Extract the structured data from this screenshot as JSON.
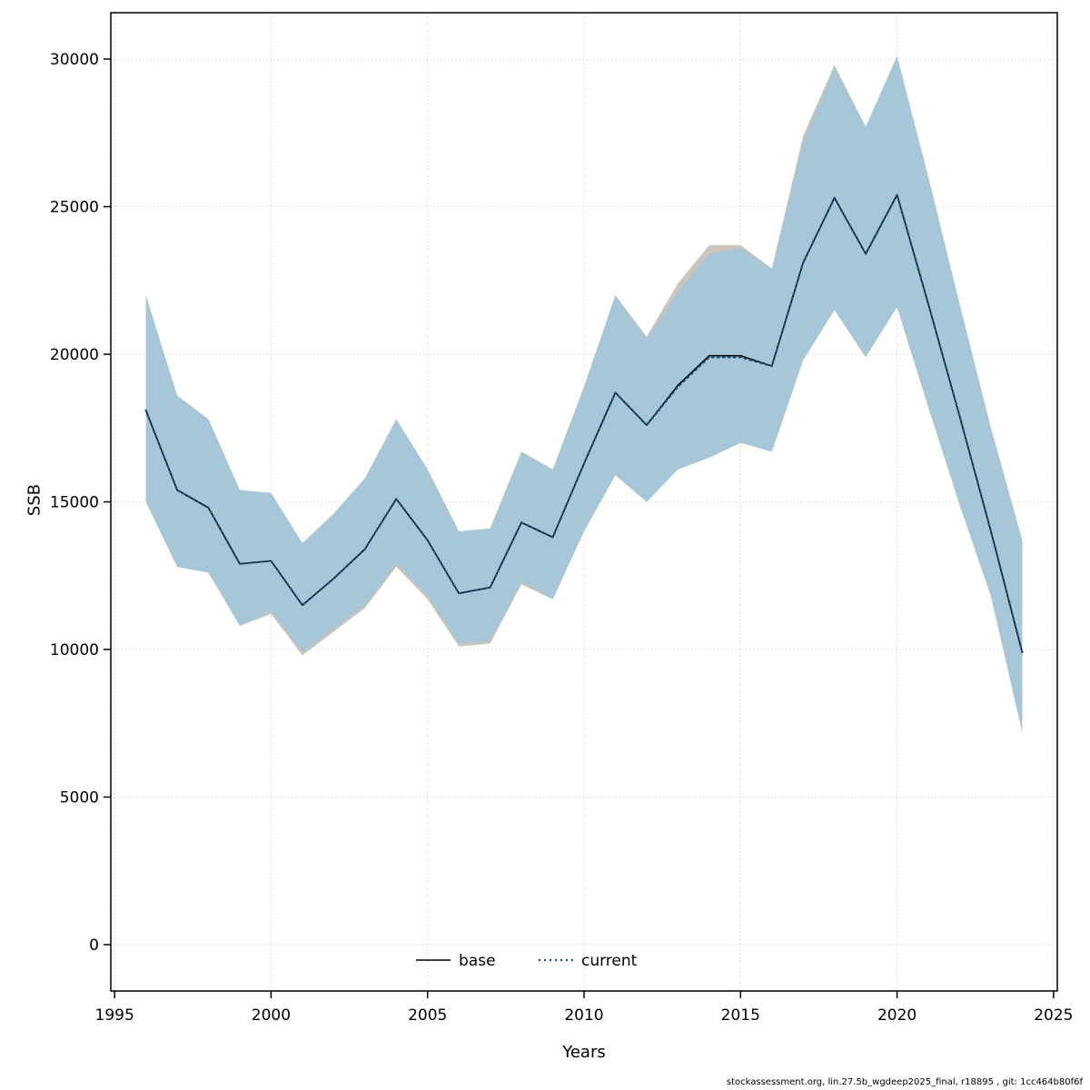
{
  "footer": {
    "text": "stockassessment.org, lin.27.5b_wgdeep2025_final, r18895 , git: 1cc464b80f6f"
  },
  "chart_data": {
    "type": "area",
    "title": "",
    "xlabel": "Years",
    "ylabel": "SSB",
    "xlim": [
      1995,
      2025
    ],
    "ylim": [
      0,
      30000
    ],
    "x_ticks": [
      1995,
      2000,
      2005,
      2010,
      2015,
      2020,
      2025
    ],
    "y_ticks": [
      0,
      5000,
      10000,
      15000,
      20000,
      25000,
      30000
    ],
    "grid": true,
    "legend_position": "bottom-center",
    "x": [
      1996,
      1997,
      1998,
      1999,
      2000,
      2001,
      2002,
      2003,
      2004,
      2005,
      2006,
      2007,
      2008,
      2009,
      2010,
      2011,
      2012,
      2013,
      2014,
      2015,
      2016,
      2017,
      2018,
      2019,
      2020,
      2021,
      2022,
      2023,
      2024
    ],
    "series": [
      {
        "name": "base",
        "line_style": "solid",
        "color": "#000000",
        "band_color": "#c9c4be",
        "band_opacity": 1,
        "median": [
          18100,
          15400,
          14800,
          12900,
          13000,
          11500,
          12400,
          13400,
          15100,
          13700,
          11900,
          12100,
          14300,
          13800,
          16300,
          18700,
          17600,
          18950,
          19950,
          19950,
          19600,
          23100,
          25300,
          23400,
          25400,
          21700,
          17900,
          14000,
          9900
        ],
        "low": [
          15000,
          12800,
          12600,
          10800,
          11200,
          9800,
          10600,
          11400,
          12800,
          11700,
          10100,
          10200,
          12200,
          11700,
          14000,
          15900,
          15000,
          16100,
          16500,
          17000,
          16700,
          19800,
          21500,
          19900,
          21600,
          18200,
          14900,
          11800,
          7200
        ],
        "high": [
          22000,
          18600,
          17800,
          15400,
          15300,
          13600,
          14600,
          15800,
          17800,
          16100,
          14000,
          14100,
          16700,
          16100,
          18900,
          22000,
          20600,
          22400,
          23700,
          23700,
          22900,
          27400,
          29800,
          27700,
          30100,
          26000,
          21700,
          17500,
          13700
        ]
      },
      {
        "name": "current",
        "line_style": "dotted",
        "color": "#17506e",
        "band_color": "#a4c7db",
        "band_opacity": 0.92,
        "median": [
          18100,
          15400,
          14800,
          12900,
          13000,
          11500,
          12400,
          13400,
          15100,
          13700,
          11900,
          12100,
          14300,
          13800,
          16300,
          18700,
          17600,
          18900,
          19900,
          19900,
          19600,
          23100,
          25300,
          23400,
          25400,
          21700,
          17900,
          14000,
          9900
        ],
        "low": [
          15000,
          12800,
          12600,
          10800,
          11300,
          9900,
          10700,
          11500,
          12900,
          11800,
          10200,
          10300,
          12300,
          11700,
          14000,
          15900,
          15000,
          16100,
          16500,
          17000,
          16700,
          19800,
          21500,
          19900,
          21600,
          18200,
          14900,
          11800,
          7200
        ],
        "high": [
          22000,
          18600,
          17800,
          15400,
          15300,
          13600,
          14600,
          15800,
          17800,
          16100,
          14000,
          14100,
          16700,
          16100,
          18900,
          22000,
          20500,
          22100,
          23400,
          23600,
          22900,
          27200,
          29700,
          27700,
          30100,
          26000,
          21700,
          17500,
          13700
        ]
      }
    ]
  }
}
